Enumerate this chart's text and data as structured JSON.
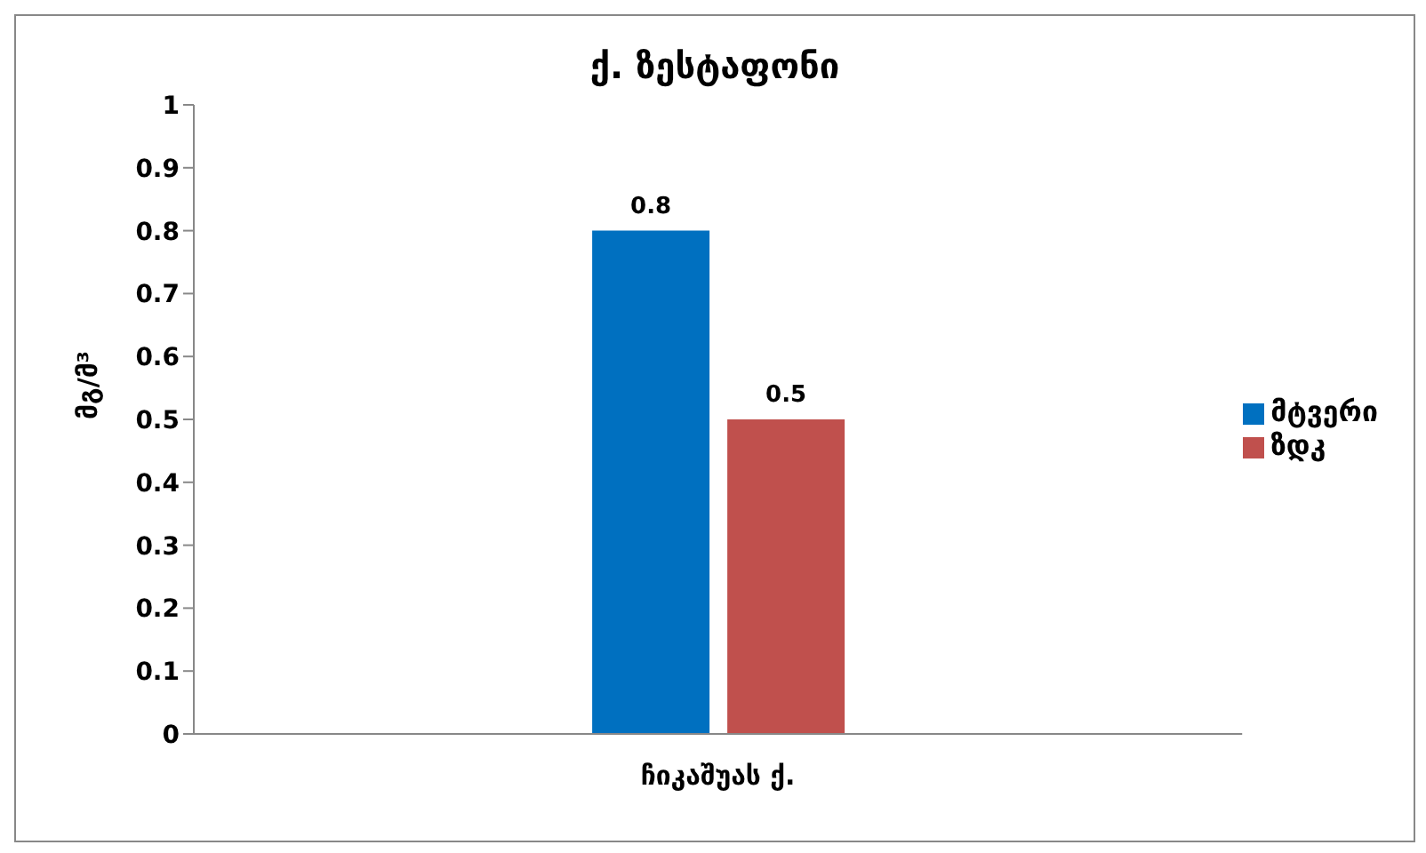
{
  "chart_data": {
    "type": "bar",
    "title": "ქ. ზესტაფონი",
    "ylabel": "მგ/მ³",
    "categories": [
      "ჩიკაშუას ქ."
    ],
    "series": [
      {
        "name": "მტვერი",
        "color": "#0070c0",
        "values": [
          0.8
        ]
      },
      {
        "name": "ზდკ",
        "color": "#c0504d",
        "values": [
          0.5
        ]
      }
    ],
    "ylim": [
      0,
      1
    ],
    "yticks": [
      0,
      0.1,
      0.2,
      0.3,
      0.4,
      0.5,
      0.6,
      0.7,
      0.8,
      0.9,
      1
    ],
    "data_labels": true,
    "grid": false,
    "legend": "right"
  }
}
